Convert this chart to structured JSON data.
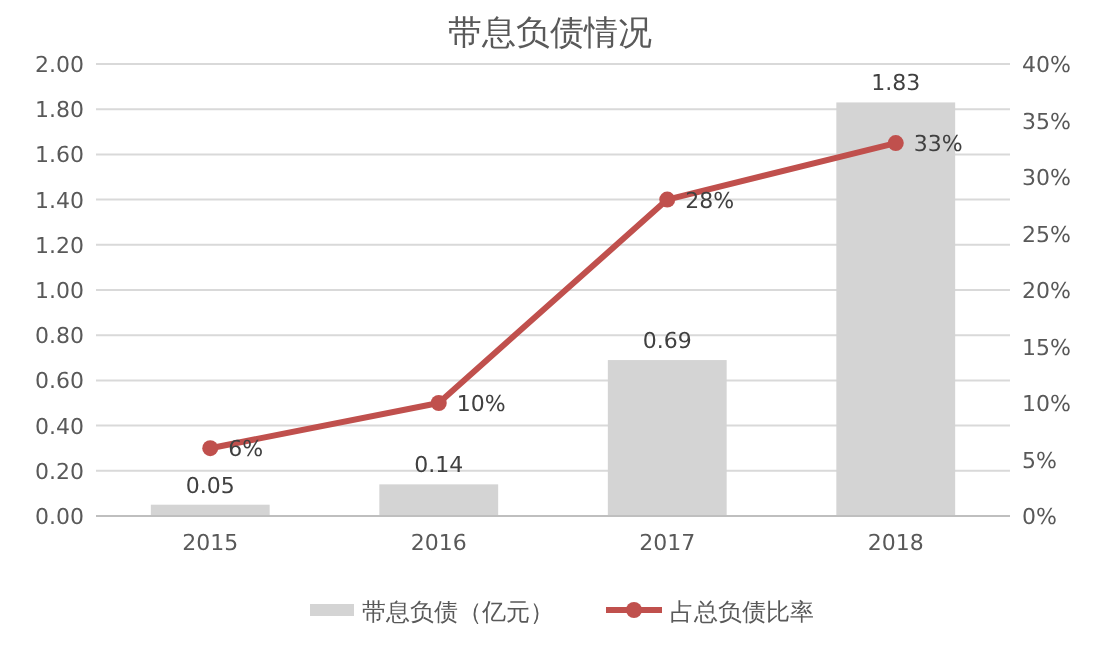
{
  "chart_data": {
    "type": "bar",
    "title": "带息负债情况",
    "categories": [
      "2015",
      "2016",
      "2017",
      "2018"
    ],
    "series": [
      {
        "name": "带息负债（亿元）",
        "color": "#d4d4d4",
        "values": [
          0.05,
          0.14,
          0.69,
          1.83
        ],
        "value_labels": [
          "0.05",
          "0.14",
          "0.69",
          "1.83"
        ]
      },
      {
        "name": "占总负债比率",
        "type": "line",
        "axis": "y2",
        "color": "#c0504d",
        "marker": "circle",
        "values": [
          6,
          10,
          28,
          33
        ],
        "value_labels": [
          "6%",
          "10%",
          "28%",
          "33%"
        ]
      }
    ],
    "ylim": [
      0,
      2
    ],
    "yticks": [
      {
        "value": 0,
        "label": "0.00"
      },
      {
        "value": 0.2,
        "label": "0.20"
      },
      {
        "value": 0.4,
        "label": "0.40"
      },
      {
        "value": 0.6,
        "label": "0.60"
      },
      {
        "value": 0.8,
        "label": "0.80"
      },
      {
        "value": 1,
        "label": "1.00"
      },
      {
        "value": 1.2,
        "label": "1.20"
      },
      {
        "value": 1.4,
        "label": "1.40"
      },
      {
        "value": 1.6,
        "label": "1.60"
      },
      {
        "value": 1.8,
        "label": "1.80"
      },
      {
        "value": 2,
        "label": "2.00"
      }
    ],
    "y2lim": [
      0,
      40
    ],
    "y2ticks": [
      {
        "value": 0,
        "label": "0%"
      },
      {
        "value": 5,
        "label": "5%"
      },
      {
        "value": 10,
        "label": "10%"
      },
      {
        "value": 15,
        "label": "15%"
      },
      {
        "value": 20,
        "label": "20%"
      },
      {
        "value": 25,
        "label": "25%"
      },
      {
        "value": 30,
        "label": "30%"
      },
      {
        "value": 35,
        "label": "35%"
      },
      {
        "value": 40,
        "label": "40%"
      }
    ],
    "grid": "y",
    "legend": "bottom"
  }
}
